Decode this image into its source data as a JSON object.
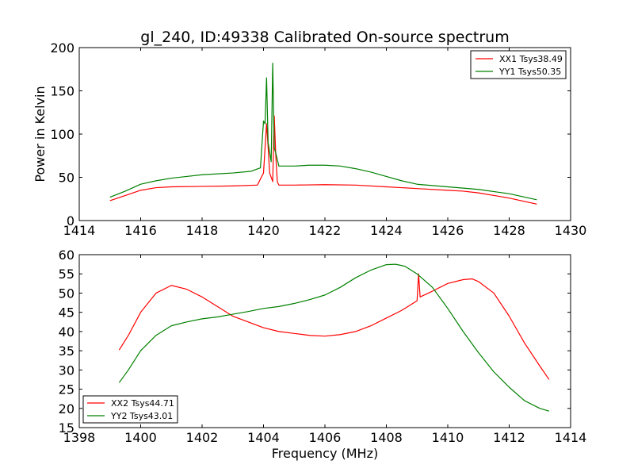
{
  "chart_data": [
    {
      "type": "line",
      "title": "gl_240, ID:49338 Calibrated On-source spectrum",
      "xlabel": "",
      "ylabel": "Power in Kelvin",
      "xlim": [
        1414,
        1430
      ],
      "ylim": [
        0,
        200
      ],
      "xticks": [
        1414,
        1416,
        1418,
        1420,
        1422,
        1424,
        1426,
        1428,
        1430
      ],
      "yticks": [
        0,
        50,
        100,
        150,
        200
      ],
      "legend_position": "top-right",
      "grid": false,
      "series": [
        {
          "name": "XX1 Tsys38.49",
          "color": "#ff0000",
          "x": [
            1415,
            1415.5,
            1416,
            1416.5,
            1417,
            1418,
            1419,
            1419.8,
            1420,
            1420.1,
            1420.15,
            1420.2,
            1420.3,
            1420.35,
            1420.4,
            1420.45,
            1420.5,
            1421,
            1422,
            1423,
            1424,
            1425,
            1426,
            1426.5,
            1427,
            1428,
            1428.9
          ],
          "y": [
            23,
            29,
            35,
            38,
            39,
            39.5,
            40,
            41,
            55,
            112,
            85,
            55,
            45,
            121,
            75,
            45,
            41,
            41,
            41.5,
            41,
            39,
            37,
            35,
            34,
            32,
            26,
            19
          ]
        },
        {
          "name": "YY1 Tsys50.35",
          "color": "#008000",
          "x": [
            1415,
            1415.5,
            1416,
            1416.5,
            1417,
            1417.5,
            1418,
            1419,
            1419.6,
            1419.9,
            1420,
            1420.05,
            1420.1,
            1420.15,
            1420.25,
            1420.3,
            1420.35,
            1420.4,
            1420.5,
            1421,
            1421.5,
            1422,
            1422.5,
            1423,
            1423.5,
            1424,
            1424.5,
            1425,
            1426,
            1427,
            1428,
            1428.9
          ],
          "y": [
            27,
            34,
            42,
            46,
            49,
            51,
            53,
            55,
            57,
            61,
            115,
            112,
            165,
            90,
            68,
            182,
            84,
            78,
            63,
            63,
            64,
            64,
            63,
            60,
            56,
            51,
            46,
            42,
            39,
            36,
            31,
            24
          ]
        }
      ]
    },
    {
      "type": "line",
      "title": "",
      "xlabel": "Frequency (MHz)",
      "ylabel": "",
      "xlim": [
        1398,
        1414
      ],
      "ylim": [
        15,
        60
      ],
      "xticks": [
        1398,
        1400,
        1402,
        1404,
        1406,
        1408,
        1410,
        1412,
        1414
      ],
      "yticks": [
        15,
        20,
        25,
        30,
        35,
        40,
        45,
        50,
        55,
        60
      ],
      "legend_position": "bottom-left",
      "grid": false,
      "series": [
        {
          "name": "XX2 Tsys44.71",
          "color": "#ff0000",
          "x": [
            1399.3,
            1399.6,
            1400,
            1400.5,
            1401,
            1401.5,
            1402,
            1402.5,
            1403,
            1403.5,
            1404,
            1404.5,
            1405,
            1405.5,
            1406,
            1406.5,
            1407,
            1407.5,
            1408,
            1408.5,
            1409,
            1409.05,
            1409.1,
            1409.5,
            1410,
            1410.5,
            1410.8,
            1411,
            1411.5,
            1412,
            1412.5,
            1413,
            1413.3
          ],
          "y": [
            35.2,
            39,
            45,
            50,
            52,
            51,
            49,
            46.5,
            44,
            42.5,
            41,
            40,
            39.5,
            39,
            38.8,
            39.2,
            40,
            41.5,
            43.5,
            45.5,
            48,
            55,
            49,
            50.5,
            52.5,
            53.5,
            53.7,
            53,
            50,
            44,
            37,
            31,
            27.5
          ]
        },
        {
          "name": "YY2 Tsys43.01",
          "color": "#008000",
          "x": [
            1399.3,
            1399.6,
            1400,
            1400.5,
            1401,
            1401.5,
            1402,
            1402.5,
            1403,
            1403.5,
            1404,
            1404.5,
            1405,
            1405.5,
            1406,
            1406.5,
            1407,
            1407.5,
            1408,
            1408.3,
            1408.6,
            1409,
            1409.5,
            1410,
            1410.5,
            1411,
            1411.5,
            1412,
            1412.5,
            1413,
            1413.3
          ],
          "y": [
            26.7,
            30,
            35,
            39,
            41.5,
            42.5,
            43.3,
            43.8,
            44.5,
            45.2,
            46,
            46.5,
            47.3,
            48.3,
            49.5,
            51.5,
            54,
            56,
            57.4,
            57.5,
            57,
            55,
            51.5,
            46,
            40,
            34.5,
            29.5,
            25.5,
            22,
            20,
            19.3
          ]
        }
      ]
    }
  ]
}
